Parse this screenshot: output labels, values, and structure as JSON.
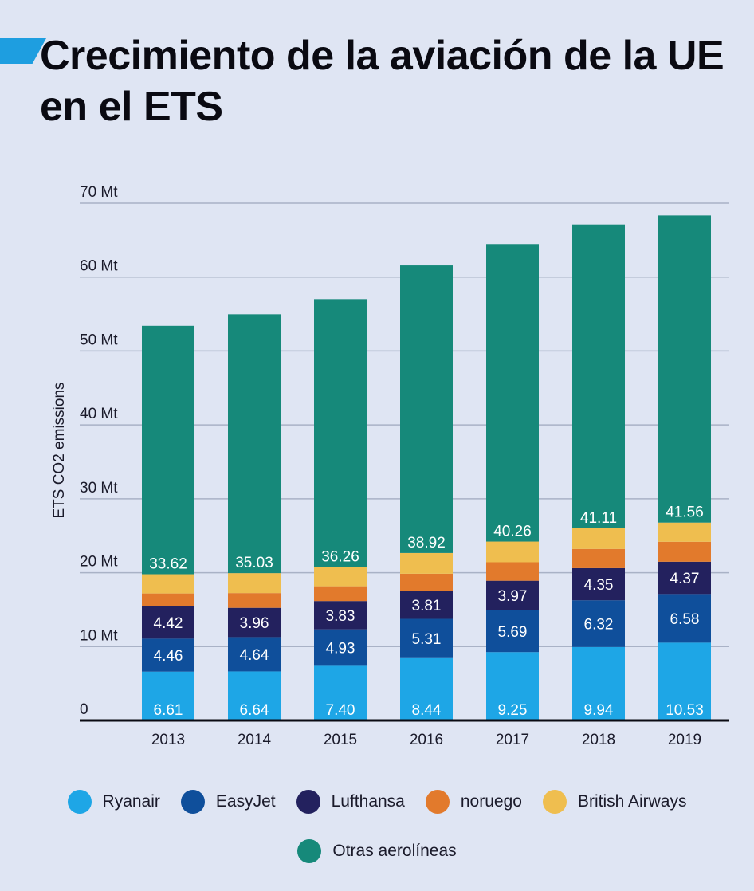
{
  "title": "Crecimiento de la aviación de la UE en el ETS",
  "accent_color": "#1e9ee0",
  "chart_data": {
    "type": "bar",
    "stacked": true,
    "categories": [
      "2013",
      "2014",
      "2015",
      "2016",
      "2017",
      "2018",
      "2019"
    ],
    "ylabel": "ETS CO2 emissions",
    "ylim": [
      0,
      70
    ],
    "y_ticks": [
      "0",
      "10 Mt",
      "20 Mt",
      "30 Mt",
      "40 Mt",
      "50 Mt",
      "60 Mt",
      "70 Mt"
    ],
    "grid": true,
    "legend_position": "bottom",
    "series": [
      {
        "name": "Ryanair",
        "color": "#1ea6e6",
        "values": [
          6.61,
          6.64,
          7.4,
          8.44,
          9.25,
          9.94,
          10.53
        ],
        "labels": [
          "6.61",
          "6.64",
          "7.40",
          "8.44",
          "9.25",
          "9.94",
          "10.53"
        ]
      },
      {
        "name": "EasyJet",
        "color": "#0f4f9b",
        "values": [
          4.46,
          4.64,
          4.93,
          5.31,
          5.69,
          6.32,
          6.58
        ],
        "labels": [
          "4.46",
          "4.64",
          "4.93",
          "5.31",
          "5.69",
          "6.32",
          "6.58"
        ]
      },
      {
        "name": "Lufthansa",
        "color": "#23215e",
        "values": [
          4.42,
          3.96,
          3.83,
          3.81,
          3.97,
          4.35,
          4.37
        ],
        "labels": [
          "4.42",
          "3.96",
          "3.83",
          "3.81",
          "3.97",
          "4.35",
          "4.37"
        ]
      },
      {
        "name": "noruego",
        "color": "#e27a2c",
        "values": [
          1.7,
          2.0,
          2.0,
          2.3,
          2.5,
          2.6,
          2.7
        ],
        "labels": []
      },
      {
        "name": "British Airways",
        "color": "#efbe4f",
        "values": [
          2.6,
          2.7,
          2.6,
          2.8,
          2.8,
          2.8,
          2.6
        ],
        "labels": []
      },
      {
        "name": "Otras aerolíneas",
        "color": "#16897a",
        "values": [
          33.62,
          35.03,
          36.26,
          38.92,
          40.26,
          41.11,
          41.56
        ],
        "labels": [
          "33.62",
          "35.03",
          "36.26",
          "38.92",
          "40.26",
          "41.11",
          "41.56"
        ]
      }
    ]
  }
}
